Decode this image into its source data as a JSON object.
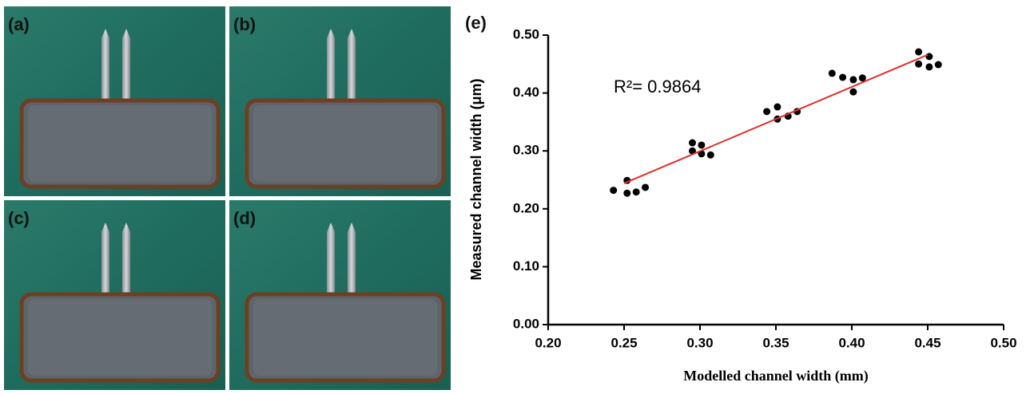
{
  "panels": [
    "(a)",
    "(b)",
    "(c)",
    "(d)"
  ],
  "chart_data": {
    "type": "scatter",
    "panel_label": "(e)",
    "x_label": "Modelled channel width (mm)",
    "y_label": "Measured channel width (μm)",
    "annotation": "R²= 0.9864",
    "xlim": [
      0.2,
      0.5
    ],
    "xticks": [
      {
        "value": 0.2,
        "label": "0.20"
      },
      {
        "value": 0.25,
        "label": "0.25"
      },
      {
        "value": 0.3,
        "label": "0.30"
      },
      {
        "value": 0.35,
        "label": "0.35"
      },
      {
        "value": 0.4,
        "label": "0.40"
      },
      {
        "value": 0.45,
        "label": "0.45"
      },
      {
        "value": 0.5,
        "label": "0.50"
      }
    ],
    "ylim": [
      0.0,
      0.5
    ],
    "yticks": [
      {
        "value": 0.0,
        "label": "0.00"
      },
      {
        "value": 0.1,
        "label": "0.10"
      },
      {
        "value": 0.2,
        "label": "0.20"
      },
      {
        "value": 0.3,
        "label": "0.30"
      },
      {
        "value": 0.4,
        "label": "0.40"
      },
      {
        "value": 0.5,
        "label": "0.50"
      }
    ],
    "series": [
      {
        "color": "#000000",
        "kind": "points",
        "x": [
          0.243,
          0.252,
          0.252,
          0.258,
          0.264,
          0.295,
          0.295,
          0.301,
          0.301,
          0.307,
          0.344,
          0.351,
          0.351,
          0.358,
          0.364,
          0.387,
          0.394,
          0.401,
          0.401,
          0.407,
          0.444,
          0.444,
          0.451,
          0.451,
          0.457
        ],
        "values": [
          0.232,
          0.249,
          0.227,
          0.229,
          0.237,
          0.314,
          0.3,
          0.31,
          0.295,
          0.293,
          0.368,
          0.376,
          0.355,
          0.36,
          0.368,
          0.434,
          0.427,
          0.402,
          0.423,
          0.426,
          0.471,
          0.45,
          0.463,
          0.445,
          0.449
        ]
      },
      {
        "color": "#e03030",
        "kind": "line",
        "x": [
          0.25,
          0.45
        ],
        "values": [
          0.244,
          0.466
        ]
      }
    ]
  }
}
